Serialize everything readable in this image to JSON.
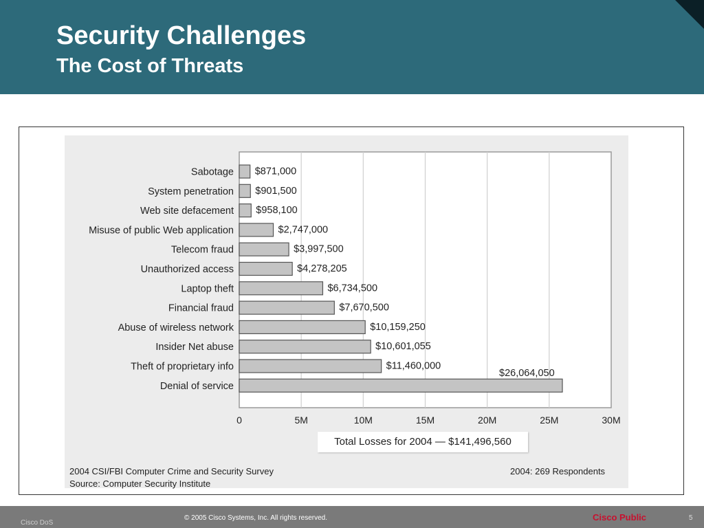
{
  "header": {
    "title": "Security Challenges",
    "subtitle": "The Cost of Threats"
  },
  "chart_data": {
    "type": "bar",
    "orientation": "horizontal",
    "categories": [
      "Sabotage",
      "System penetration",
      "Web site defacement",
      "Misuse of public Web application",
      "Telecom fraud",
      "Unauthorized access",
      "Laptop theft",
      "Financial fraud",
      "Abuse of wireless network",
      "Insider Net abuse",
      "Theft of proprietary info",
      "Denial of service"
    ],
    "values": [
      871000,
      901500,
      958100,
      2747000,
      3997500,
      4278205,
      6734500,
      7670500,
      10159250,
      10601055,
      11460000,
      26064050
    ],
    "value_labels": [
      "$871,000",
      "$901,500",
      "$958,100",
      "$2,747,000",
      "$3,997,500",
      "$4,278,205",
      "$6,734,500",
      "$7,670,500",
      "$10,159,250",
      "$10,601,055",
      "$11,460,000",
      "$26,064,050"
    ],
    "x_ticks": [
      0,
      5000000,
      10000000,
      15000000,
      20000000,
      25000000,
      30000000
    ],
    "x_tick_labels": [
      "0",
      "5M",
      "10M",
      "15M",
      "20M",
      "25M",
      "30M"
    ],
    "xlim": [
      0,
      30000000
    ],
    "grid": true,
    "bar_color": "#c4c4c4",
    "total_label": "Total Losses for 2004 — $141,496,560",
    "source_line1": "2004 CSI/FBI Computer Crime and Security Survey",
    "source_line2": "Source: Computer Security Institute",
    "respondents": "2004: 269 Respondents"
  },
  "footer": {
    "left": "Cisco DoS",
    "copyright": "© 2005 Cisco Systems, Inc. All rights reserved.",
    "classification": "Cisco Public",
    "page": "5"
  },
  "colors": {
    "header_bg": "#2d6a7a",
    "classification": "#c8102e"
  }
}
